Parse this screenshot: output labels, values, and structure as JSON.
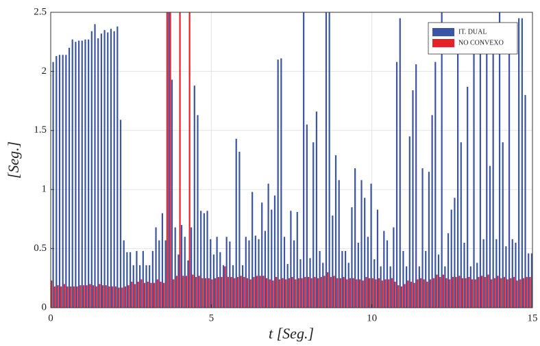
{
  "chart_data": {
    "type": "bar",
    "xlabel": "t [Seg.]",
    "ylabel": "[Seg.]",
    "x": [
      0,
      0.1,
      0.2,
      0.3,
      0.4,
      0.5,
      0.6,
      0.7,
      0.8,
      0.9,
      1,
      1.1,
      1.2,
      1.3,
      1.4,
      1.5,
      1.6,
      1.7,
      1.8,
      1.9,
      2,
      2.1,
      2.2,
      2.3,
      2.4,
      2.5,
      2.6,
      2.7,
      2.8,
      2.9,
      3,
      3.1,
      3.2,
      3.3,
      3.4,
      3.5,
      3.6,
      3.7,
      3.8,
      3.9,
      4,
      4.1,
      4.2,
      4.3,
      4.4,
      4.5,
      4.6,
      4.7,
      4.8,
      4.9,
      5,
      5.1,
      5.2,
      5.3,
      5.4,
      5.5,
      5.6,
      5.7,
      5.8,
      5.9,
      6,
      6.1,
      6.2,
      6.3,
      6.4,
      6.5,
      6.6,
      6.7,
      6.8,
      6.9,
      7,
      7.1,
      7.2,
      7.3,
      7.4,
      7.5,
      7.6,
      7.7,
      7.8,
      7.9,
      8,
      8.1,
      8.2,
      8.3,
      8.4,
      8.5,
      8.6,
      8.7,
      8.8,
      8.9,
      9,
      9.1,
      9.2,
      9.3,
      9.4,
      9.5,
      9.6,
      9.7,
      9.8,
      9.9,
      10,
      10.1,
      10.2,
      10.3,
      10.4,
      10.5,
      10.6,
      10.7,
      10.8,
      10.9,
      11,
      11.1,
      11.2,
      11.3,
      11.4,
      11.5,
      11.6,
      11.7,
      11.8,
      11.9,
      12,
      12.1,
      12.2,
      12.3,
      12.4,
      12.5,
      12.6,
      12.7,
      12.8,
      12.9,
      13,
      13.1,
      13.2,
      13.3,
      13.4,
      13.5,
      13.6,
      13.7,
      13.8,
      13.9,
      14,
      14.1,
      14.2,
      14.3,
      14.4,
      14.5,
      14.6,
      14.7,
      14.8,
      14.9,
      15
    ],
    "series": [
      {
        "name": "IT. DUAL",
        "color": "#3a55a4",
        "values": [
          2.17,
          2.08,
          2.13,
          2.14,
          2.14,
          2.14,
          2.2,
          2.27,
          2.25,
          2.26,
          2.26,
          2.27,
          2.27,
          2.34,
          2.4,
          2.28,
          2.32,
          2.35,
          2.33,
          2.36,
          2.34,
          2.38,
          1.59,
          0.57,
          0.47,
          0.47,
          0.36,
          0.48,
          0.36,
          0.48,
          0.36,
          0.36,
          0.48,
          0.68,
          0.57,
          0.8,
          0.57,
          2.5,
          1.93,
          0.68,
          0.45,
          0.7,
          0.6,
          0.4,
          0.68,
          1.88,
          1.63,
          0.82,
          0.8,
          0.82,
          0.58,
          0.45,
          0.6,
          0.47,
          0.36,
          0.6,
          0.56,
          0.36,
          1.43,
          1.32,
          0.36,
          0.6,
          0.57,
          0.98,
          0.61,
          0.58,
          0.89,
          0.65,
          1.05,
          0.83,
          0.95,
          2.1,
          2.11,
          0.6,
          0.37,
          0.82,
          0.57,
          0.81,
          0.41,
          2.6,
          1.55,
          0.42,
          1.4,
          1.66,
          0.48,
          0.38,
          2.6,
          2.6,
          0.78,
          1.29,
          1.08,
          0.48,
          0.48,
          0.38,
          0.85,
          1.18,
          0.55,
          1.08,
          0.93,
          0.6,
          1.05,
          0.41,
          0.83,
          0.35,
          0.65,
          0.57,
          0.35,
          0.68,
          2.08,
          2.45,
          0.48,
          0.35,
          1.45,
          1.84,
          2.06,
          0.35,
          1.18,
          0.48,
          1.15,
          1.63,
          2.08,
          0.45,
          2.5,
          0.35,
          0.63,
          0.83,
          0.93,
          2.3,
          1.4,
          0.55,
          1.87,
          0.35,
          2.2,
          0.38,
          2.2,
          0.58,
          2.3,
          1.2,
          2.25,
          0.58,
          2.5,
          1.4,
          0.52,
          2.38,
          0.58,
          0.55,
          2.45,
          2.45,
          1.8,
          0.46,
          0.46
        ]
      },
      {
        "name": "NO CONVEXO",
        "color": "#e8202a",
        "values": [
          0.23,
          0.18,
          0.19,
          0.18,
          0.2,
          0.18,
          0.18,
          0.18,
          0.18,
          0.19,
          0.19,
          0.19,
          0.2,
          0.19,
          0.18,
          0.2,
          0.19,
          0.19,
          0.18,
          0.18,
          0.18,
          0.17,
          0.17,
          0.18,
          0.19,
          0.22,
          0.2,
          0.22,
          0.24,
          0.21,
          0.22,
          0.21,
          0.21,
          0.24,
          0.22,
          0.21,
          2.6,
          2.6,
          0.24,
          0.27,
          2.6,
          0.27,
          0.27,
          2.6,
          0.28,
          0.26,
          0.27,
          0.25,
          0.25,
          0.25,
          0.24,
          0.25,
          0.26,
          0.26,
          0.35,
          0.26,
          0.26,
          0.25,
          0.26,
          0.27,
          0.26,
          0.25,
          0.24,
          0.26,
          0.27,
          0.27,
          0.27,
          0.25,
          0.24,
          0.23,
          0.26,
          0.24,
          0.25,
          0.24,
          0.25,
          0.26,
          0.24,
          0.25,
          0.25,
          0.26,
          0.26,
          0.25,
          0.26,
          0.25,
          0.26,
          0.27,
          0.3,
          0.26,
          0.27,
          0.25,
          0.25,
          0.26,
          0.24,
          0.25,
          0.25,
          0.24,
          0.24,
          0.23,
          0.26,
          0.25,
          0.25,
          0.24,
          0.25,
          0.23,
          0.24,
          0.24,
          0.25,
          0.22,
          0.19,
          0.18,
          0.2,
          0.23,
          0.22,
          0.21,
          0.24,
          0.25,
          0.24,
          0.22,
          0.24,
          0.25,
          0.28,
          0.26,
          0.28,
          0.25,
          0.24,
          0.26,
          0.26,
          0.27,
          0.25,
          0.25,
          0.26,
          0.24,
          0.24,
          0.26,
          0.27,
          0.26,
          0.28,
          0.24,
          0.25,
          0.27,
          0.25,
          0.26,
          0.24,
          0.25,
          0.26,
          0.23,
          0.24,
          0.25,
          0.26,
          0.26,
          0.25
        ]
      }
    ],
    "xlim": [
      0,
      15
    ],
    "xticks": [
      0,
      5,
      10,
      15
    ],
    "ylim": [
      0,
      2.5
    ],
    "yticks": [
      0,
      0.5,
      1,
      1.5,
      2,
      2.5
    ],
    "grid": true,
    "legend": "upper right"
  }
}
